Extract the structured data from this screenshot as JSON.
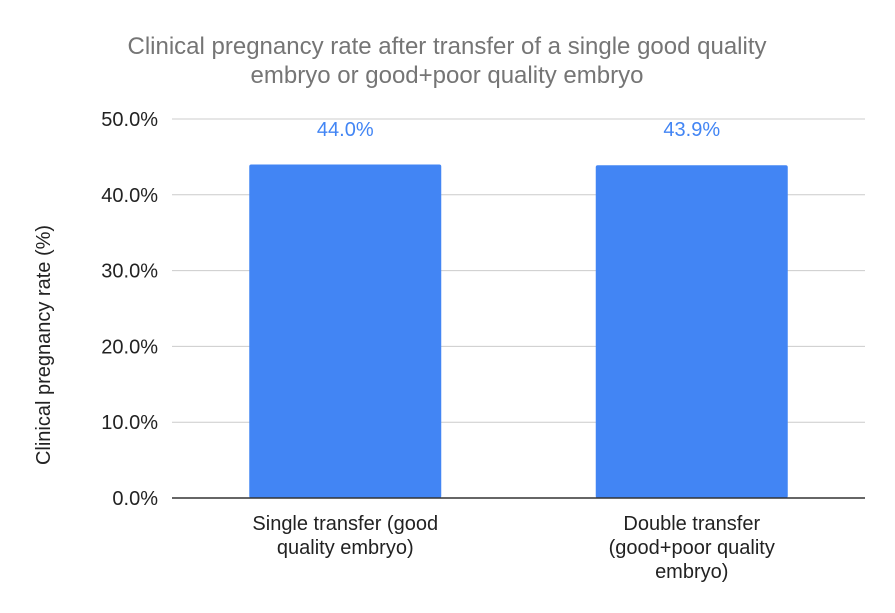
{
  "chart_data": {
    "type": "bar",
    "title_lines": [
      "Clinical pregnancy rate after transfer of a single good quality",
      "embryo or good+poor quality embryo"
    ],
    "xlabel": "",
    "ylabel": "Clinical pregnancy rate (%)",
    "categories": [
      [
        "Single transfer (good",
        "quality embryo)"
      ],
      [
        "Double transfer",
        "(good+poor quality",
        "embryo)"
      ]
    ],
    "values": [
      44.0,
      43.9
    ],
    "data_labels": [
      "44.0%",
      "43.9%"
    ],
    "ylim": [
      0,
      50
    ],
    "yticks": [
      0,
      10,
      20,
      30,
      40,
      50
    ],
    "ytick_labels": [
      "0.0%",
      "10.0%",
      "20.0%",
      "30.0%",
      "40.0%",
      "50.0%"
    ],
    "grid": true,
    "legend": "none",
    "bar_color": "#4285f4",
    "label_color": "#4285f4"
  }
}
